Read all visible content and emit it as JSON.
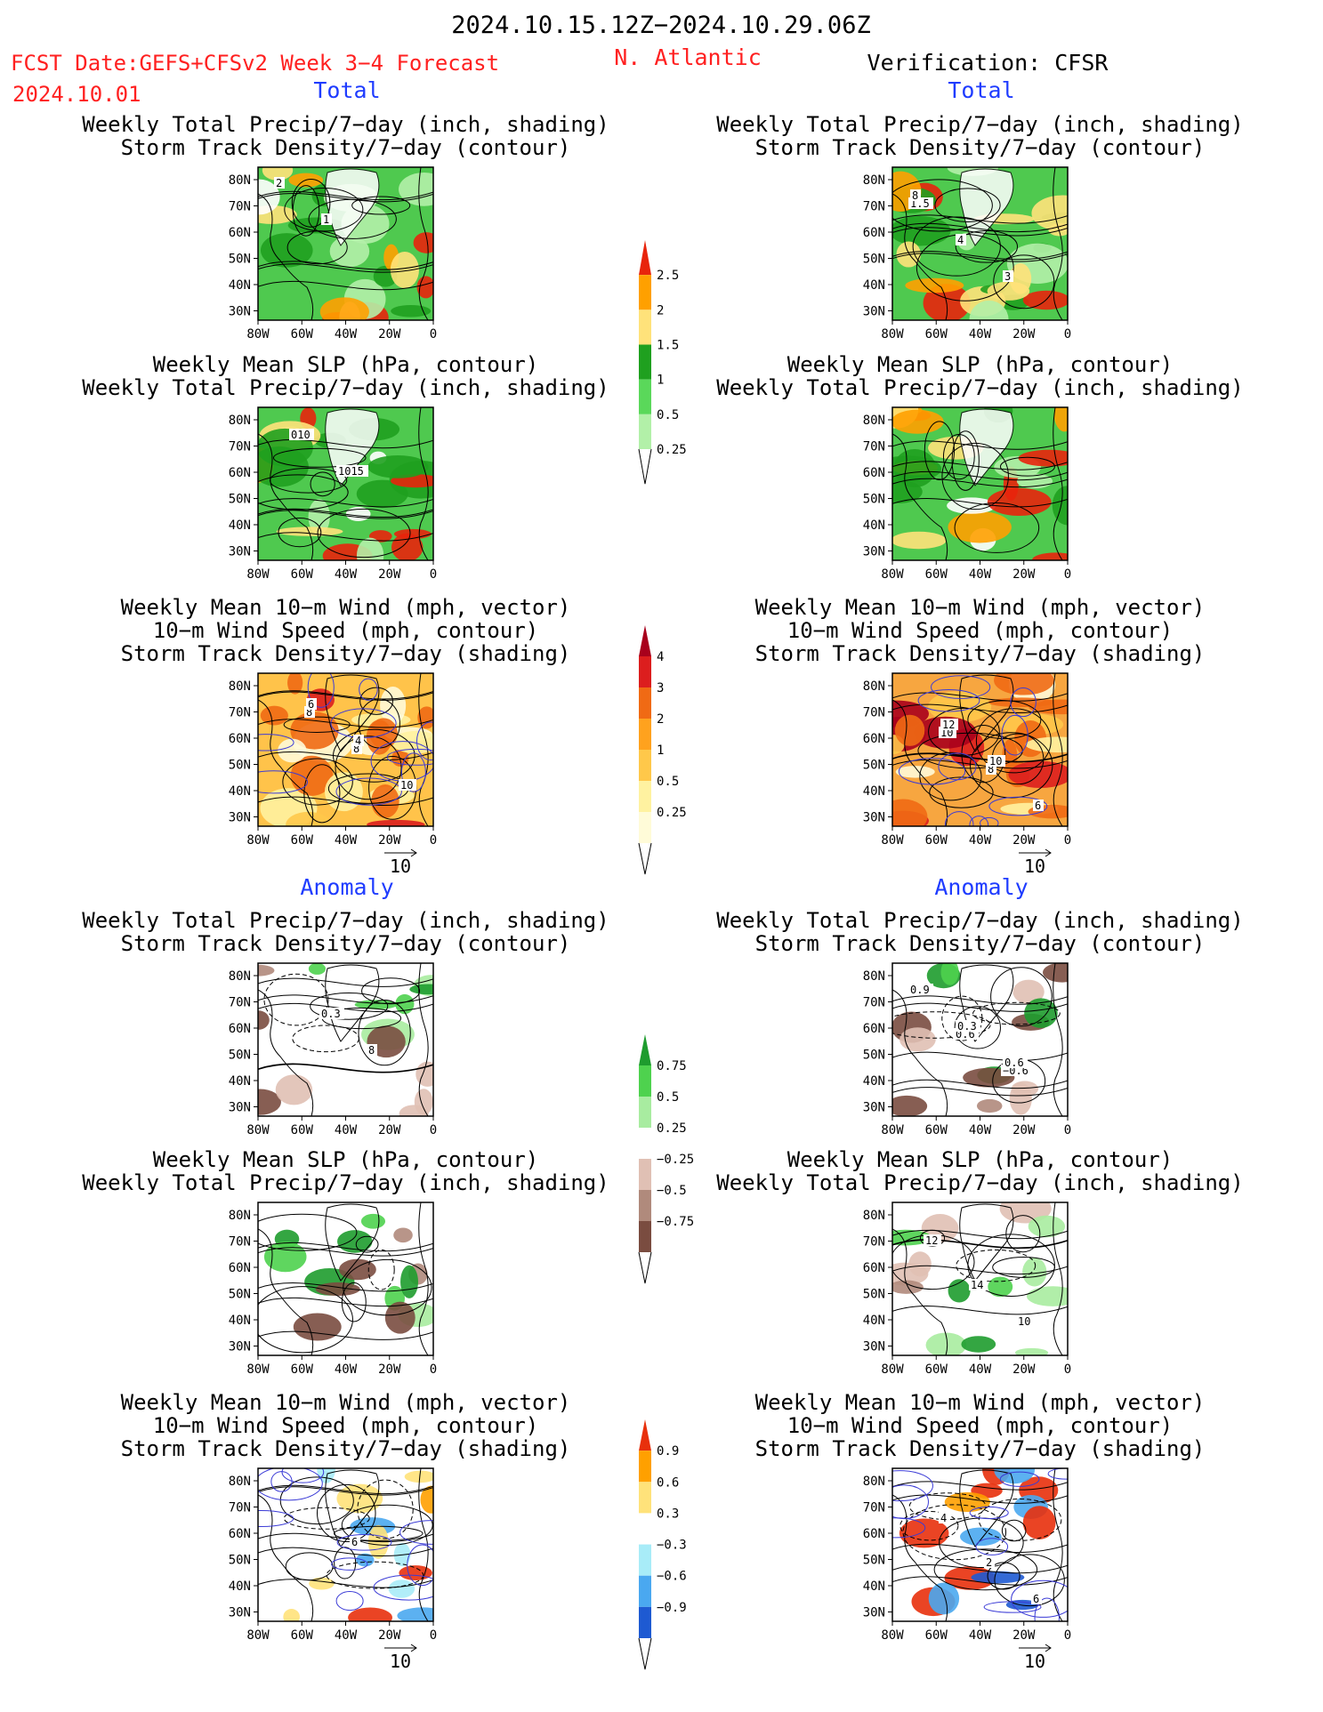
{
  "header": {
    "date_range": "2024.10.15.12Z−2024.10.29.06Z",
    "fcst_label": "FCST Date:GEFS+CFSv2 Week 3−4 Forecast",
    "fcst_date": "2024.10.01",
    "region": "N. Atlantic",
    "verification": "Verification: CFSR"
  },
  "sections": {
    "total": "Total",
    "anomaly": "Anomaly"
  },
  "titles": {
    "precip_storm": [
      "Weekly Total Precip/7−day (inch, shading)",
      "Storm Track Density/7−day (contour)"
    ],
    "slp_precip": [
      "Weekly Mean SLP (hPa, contour)",
      "Weekly Total Precip/7−day (inch, shading)"
    ],
    "wind": [
      "Weekly Mean 10−m Wind (mph, vector)",
      "10−m Wind Speed (mph, contour)",
      "Storm Track Density/7−day (shading)"
    ]
  },
  "axes": {
    "lat_ticks": [
      "80N",
      "70N",
      "60N",
      "50N",
      "40N",
      "30N"
    ],
    "lon_ticks": [
      "80W",
      "60W",
      "40W",
      "20W",
      "0"
    ]
  },
  "vector_ref": "10",
  "colorbars": {
    "total_precip": {
      "labels": [
        "2.5",
        "2",
        "1.5",
        "1",
        "0.5",
        "0.25"
      ],
      "colors": [
        "#e8240c",
        "#ffa000",
        "#ffe27a",
        "#1fa01f",
        "#5ad85a",
        "#b2f0a8"
      ]
    },
    "total_storm": {
      "labels": [
        "4",
        "3",
        "2",
        "1",
        "0.5",
        "0.25"
      ],
      "colors": [
        "#a8001c",
        "#dc1e1e",
        "#f06a14",
        "#ffa21e",
        "#ffc84a",
        "#fff2a0",
        "#fffbd8"
      ]
    },
    "anom_precip": {
      "labels": [
        "0.75",
        "0.5",
        "0.25",
        "−0.25",
        "−0.5",
        "−0.75"
      ],
      "colors": [
        "#1e9c2e",
        "#4ed24e",
        "#a8eca0",
        "#ffffff",
        "#e0c0b4",
        "#b08a7c",
        "#7a4c40"
      ]
    },
    "anom_storm": {
      "labels": [
        "0.9",
        "0.6",
        "0.3",
        "−0.3",
        "−0.6",
        "−0.9"
      ],
      "colors": [
        "#e8300c",
        "#ffa000",
        "#ffe27a",
        "#ffffff",
        "#a8ecf8",
        "#4aa8f0",
        "#1e5ad2"
      ]
    }
  },
  "panel_labels": {
    "p1": [
      "2",
      "1"
    ],
    "p2": [
      "010",
      "1015"
    ],
    "p3": [
      "8",
      "8",
      "10",
      "6",
      "4"
    ],
    "p4": [
      "0.3",
      "8"
    ],
    "p6": [
      "6"
    ],
    "r1": [
      "1.5",
      "4",
      "3",
      "8"
    ],
    "r2": [],
    "r3": [
      "10",
      "8",
      "6",
      "12",
      "10"
    ],
    "r4": [
      "0.6",
      "−0.6",
      "0.9",
      "0.3",
      "0.6"
    ],
    "r5": [
      "14",
      "10",
      "12"
    ],
    "r6": [
      "2",
      "6",
      "4"
    ]
  }
}
